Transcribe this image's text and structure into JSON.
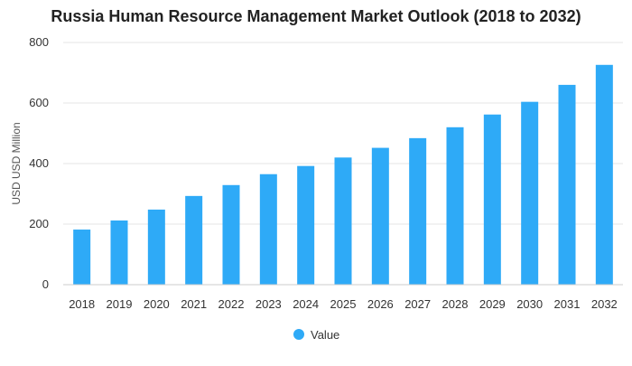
{
  "chart_data": {
    "type": "bar",
    "title": "Russia Human Resource Management Market Outlook (2018 to 2032)",
    "xlabel": "",
    "ylabel": "USD USD Million",
    "categories": [
      "2018",
      "2019",
      "2020",
      "2021",
      "2022",
      "2023",
      "2024",
      "2025",
      "2026",
      "2027",
      "2028",
      "2029",
      "2030",
      "2031",
      "2032"
    ],
    "series": [
      {
        "name": "Value",
        "values": [
          182,
          212,
          248,
          293,
          329,
          365,
          392,
          420,
          452,
          484,
          520,
          562,
          604,
          660,
          726
        ],
        "color": "#2eaaf7"
      }
    ],
    "ylim": [
      0,
      800
    ],
    "yticks": [
      0,
      200,
      400,
      600,
      800
    ],
    "grid": true,
    "legend_position": "bottom-center"
  }
}
